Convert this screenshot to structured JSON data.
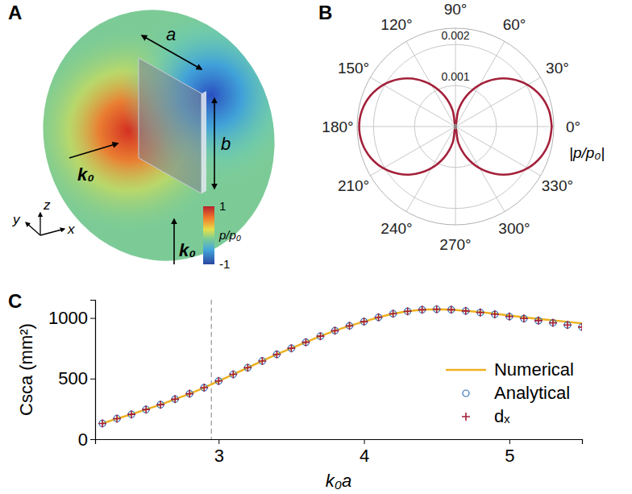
{
  "diagram": {
    "panel_label": "A",
    "labels": {
      "a": "a",
      "b": "b",
      "k_in_plane": "k₀",
      "k_vertical": "k₀",
      "axis_y": "y",
      "axis_z": "z",
      "axis_x": "x"
    },
    "colorbar": {
      "label": "p/p₀",
      "range": [
        -1,
        1
      ],
      "ticks": [
        1,
        -1
      ]
    }
  },
  "chart_data": [
    {
      "type": "polar",
      "panel_label": "B",
      "theta": [
        0,
        10,
        20,
        30,
        40,
        50,
        60,
        70,
        80,
        90,
        100,
        110,
        120,
        130,
        140,
        150,
        160,
        170,
        180,
        190,
        200,
        210,
        220,
        230,
        240,
        250,
        260,
        270,
        280,
        290,
        300,
        310,
        320,
        330,
        340,
        350,
        360
      ],
      "series": [
        {
          "color": "#a3203a",
          "values": [
            0.00235,
            0.002314,
            0.002208,
            0.002035,
            0.0018,
            0.001511,
            0.001175,
            0.000804,
            0.000408,
            0,
            0.000408,
            0.000804,
            0.001175,
            0.001511,
            0.0018,
            0.002035,
            0.002208,
            0.002314,
            0.00235,
            0.002314,
            0.002208,
            0.002035,
            0.0018,
            0.001511,
            0.001175,
            0.000804,
            0.000408,
            0,
            0.000408,
            0.000804,
            0.001175,
            0.001511,
            0.0018,
            0.002035,
            0.002208,
            0.002314,
            0.00235
          ]
        },
        {
          "color": "#8c8c8c",
          "values": [
            0,
            9e-06,
            1.7e-05,
            2.5e-05,
            3.2e-05,
            3.8e-05,
            4.3e-05,
            4.7e-05,
            4.9e-05,
            5e-05,
            4.9e-05,
            4.7e-05,
            4.3e-05,
            3.8e-05,
            3.2e-05,
            2.5e-05,
            1.7e-05,
            9e-06,
            0,
            9e-06,
            1.7e-05,
            2.5e-05,
            3.2e-05,
            3.8e-05,
            4.3e-05,
            4.7e-05,
            4.9e-05,
            5e-05,
            4.9e-05,
            4.7e-05,
            4.3e-05,
            3.8e-05,
            3.2e-05,
            2.5e-05,
            1.7e-05,
            9e-06,
            0
          ]
        }
      ],
      "rlim": [
        0,
        0.0024
      ],
      "rticks": [
        0.001,
        0.002
      ],
      "thetaticks": [
        {
          "value": 0,
          "label": "0°"
        },
        {
          "value": 30,
          "label": "30°"
        },
        {
          "value": 60,
          "label": "60°"
        },
        {
          "value": 90,
          "label": "90°"
        },
        {
          "value": 120,
          "label": "120°"
        },
        {
          "value": 150,
          "label": "150°"
        },
        {
          "value": 180,
          "label": "180°"
        },
        {
          "value": 210,
          "label": "210°"
        },
        {
          "value": 240,
          "label": "240°"
        },
        {
          "value": 270,
          "label": "270°"
        },
        {
          "value": 300,
          "label": "300°"
        },
        {
          "value": 330,
          "label": "330°"
        }
      ],
      "r_label": "|p/p₀|",
      "grid": true
    },
    {
      "type": "line",
      "panel_label": "C",
      "x": [
        2.2,
        2.3,
        2.4,
        2.5,
        2.6,
        2.7,
        2.8,
        2.9,
        3.0,
        3.1,
        3.2,
        3.3,
        3.4,
        3.5,
        3.6,
        3.7,
        3.8,
        3.9,
        4.0,
        4.1,
        4.2,
        4.3,
        4.4,
        4.5,
        4.6,
        4.7,
        4.8,
        4.9,
        5.0,
        5.1,
        5.2,
        5.3,
        5.4,
        5.5
      ],
      "series": [
        {
          "name": "Numerical",
          "type": "line",
          "color": "#edb120",
          "values": [
            130,
            170,
            205,
            245,
            285,
            330,
            375,
            425,
            480,
            535,
            590,
            645,
            700,
            750,
            800,
            850,
            895,
            935,
            970,
            1005,
            1035,
            1055,
            1068,
            1072,
            1068,
            1058,
            1048,
            1035,
            1020,
            1005,
            992,
            980,
            968,
            955
          ]
        },
        {
          "name": "Analytical",
          "type": "scatter",
          "marker": "circle",
          "color": "#2f6eb5",
          "values": [
            130,
            170,
            205,
            245,
            285,
            330,
            375,
            425,
            480,
            535,
            590,
            645,
            700,
            750,
            800,
            850,
            895,
            935,
            970,
            1005,
            1035,
            1055,
            1068,
            1072,
            1068,
            1058,
            1045,
            1030,
            1012,
            995,
            978,
            960,
            942,
            925
          ]
        },
        {
          "name": "dₓ",
          "type": "scatter",
          "marker": "plus",
          "color": "#a3203a",
          "values": [
            130,
            170,
            205,
            245,
            285,
            330,
            375,
            425,
            480,
            535,
            590,
            645,
            700,
            750,
            800,
            850,
            895,
            935,
            970,
            1005,
            1035,
            1055,
            1068,
            1072,
            1068,
            1058,
            1045,
            1030,
            1012,
            995,
            978,
            960,
            942,
            925
          ]
        }
      ],
      "xlim": [
        2.15,
        5.5
      ],
      "ylim": [
        0,
        1150
      ],
      "xticks": [
        3,
        4,
        5
      ],
      "yticks": [
        0,
        500,
        1000
      ],
      "x_label": "k₀a",
      "y_label": "Csca (mm²)",
      "legend": "lower right",
      "reference_lines": [
        {
          "x": 2.95,
          "color": "#aaaaaa",
          "line_style": "dashed"
        }
      ]
    }
  ]
}
